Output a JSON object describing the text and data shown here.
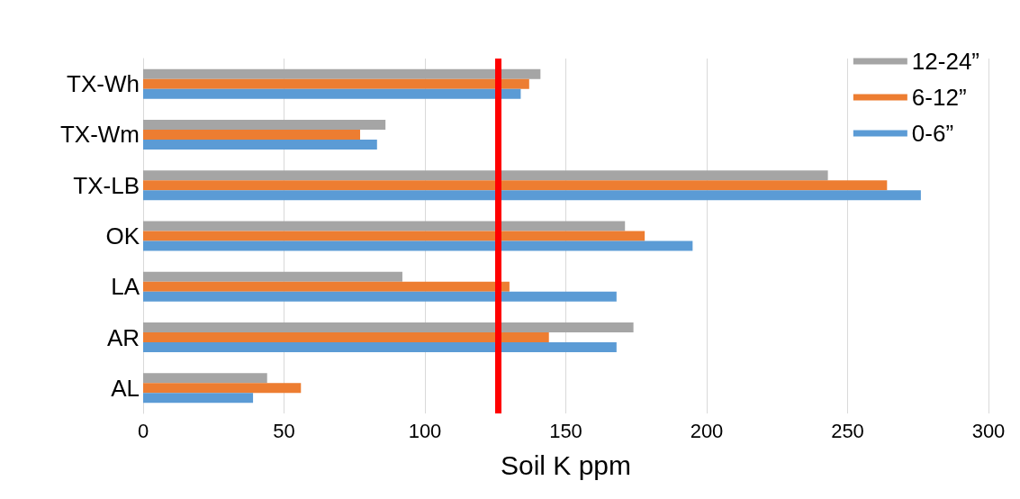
{
  "chart_data": {
    "type": "bar",
    "orientation": "horizontal",
    "xlabel": "Soil K ppm",
    "categories": [
      "TX-Wh",
      "TX-Wm",
      "TX-LB",
      "OK",
      "LA",
      "AR",
      "AL"
    ],
    "series": [
      {
        "name": "12-24”",
        "color": "#a5a5a5",
        "values": [
          141,
          86,
          243,
          171,
          92,
          174,
          44
        ]
      },
      {
        "name": "6-12”",
        "color": "#ed7d31",
        "values": [
          137,
          77,
          264,
          178,
          130,
          144,
          56
        ]
      },
      {
        "name": "0-6”",
        "color": "#5b9bd5",
        "values": [
          134,
          83,
          276,
          195,
          168,
          168,
          39
        ]
      }
    ],
    "xlim": [
      0,
      300
    ],
    "xticks": [
      0,
      50,
      100,
      150,
      200,
      250,
      300
    ],
    "grid": "x",
    "legend": "top right",
    "ref_lines": [
      {
        "axis": "x",
        "value": 126,
        "color": "#ff0000"
      }
    ]
  }
}
